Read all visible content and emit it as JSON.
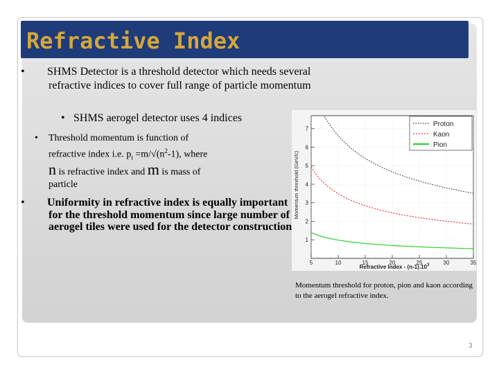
{
  "slide": {
    "title": "Refractive Index",
    "page_number": "3"
  },
  "bullets": {
    "b1": "SHMS Detector is a threshold detector which needs several refractive indices to cover full range of  particle momentum",
    "b1_sub": "SHMS aerogel detector uses 4 indices",
    "b2_line1": "Threshold momentum is function of",
    "b2_line2_pre": "refractive index      i.e. p",
    "b2_sub_t": "t",
    "b2_line2_mid": " =m/√(n",
    "b2_sup2": "2",
    "b2_line2_post": "-1), where",
    "b2_n": "n",
    "b2_line3_mid": " is refractive index and ",
    "b2_m": "m",
    "b2_line3_post": " is mass of",
    "b2_line4": "particle",
    "b3": "Uniformity in  refractive index is equally important  for the threshold momentum since large number of aerogel tiles were used for the detector  construction"
  },
  "caption": "Momentum threshold for proton, pion and  kaon according to the aerogel refractive index.",
  "chart_data": {
    "type": "line",
    "xlabel": "Refractive Index - (n-1).10",
    "xlabel_sup": "3",
    "ylabel": "Momentum threshold (GeV/c)",
    "xlim": [
      5,
      35
    ],
    "ylim": [
      0,
      7.7
    ],
    "x_ticks": [
      5,
      10,
      15,
      20,
      25,
      30,
      35
    ],
    "y_ticks": [
      1,
      2,
      3,
      4,
      5,
      6,
      7
    ],
    "grid": true,
    "legend_position": "top-right",
    "series": [
      {
        "name": "Proton",
        "mass": 0.938,
        "color": "#333333",
        "dash": "1.5,2"
      },
      {
        "name": "Kaon",
        "mass": 0.494,
        "color": "#e8333a",
        "dash": "2,2"
      },
      {
        "name": "Pion",
        "mass": 0.1396,
        "color": "#33cc33",
        "dash": ""
      }
    ]
  }
}
